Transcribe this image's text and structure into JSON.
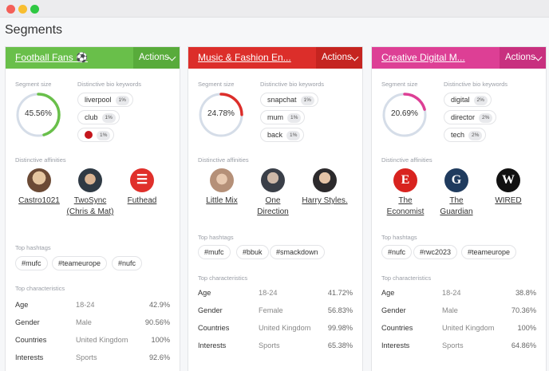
{
  "window": {
    "page_title": "Segments"
  },
  "labels": {
    "segment_size": "Segment size",
    "keywords": "Distinctive bio keywords",
    "affinities": "Distinctive affinities",
    "hashtags": "Top hashtags",
    "characteristics": "Top characteristics"
  },
  "cards": [
    {
      "title": "Football Fans ⚽",
      "actions": "Actions",
      "header_color": "#69bf4a",
      "actions_color": "#58ab3b",
      "ring_color": "#69bf4a",
      "size_pct": 45.56,
      "size_label": "45.56%",
      "keywords": [
        {
          "word": "liverpool",
          "pct": "1%"
        },
        {
          "word": "club",
          "pct": "1%"
        },
        {
          "word": "",
          "pct": "1%",
          "icon": "flag-icon"
        }
      ],
      "affinities": [
        "Castro1021",
        "TwoSync (Chris & Mat)",
        "Futhead"
      ],
      "hashtags": [
        "#mufc",
        "#teameurope",
        "#nufc"
      ],
      "characteristics": [
        {
          "key": "Age",
          "value": "18-24",
          "pct": "42.9%"
        },
        {
          "key": "Gender",
          "value": "Male",
          "pct": "90.56%"
        },
        {
          "key": "Countries",
          "value": "United Kingdom",
          "pct": "100%"
        },
        {
          "key": "Interests",
          "value": "Sports",
          "pct": "92.6%"
        }
      ]
    },
    {
      "title": "Music & Fashion En...",
      "actions": "Actions",
      "header_color": "#dc2e2a",
      "actions_color": "#c52420",
      "ring_color": "#dc2e2a",
      "size_pct": 24.78,
      "size_label": "24.78%",
      "keywords": [
        {
          "word": "snapchat",
          "pct": "1%"
        },
        {
          "word": "mum",
          "pct": "1%"
        },
        {
          "word": "back",
          "pct": "1%"
        }
      ],
      "affinities": [
        "Little Mix",
        "One Direction",
        "Harry Styles."
      ],
      "hashtags": [
        "#mufc",
        "#bbuk",
        "#smackdown"
      ],
      "characteristics": [
        {
          "key": "Age",
          "value": "18-24",
          "pct": "41.72%"
        },
        {
          "key": "Gender",
          "value": "Female",
          "pct": "56.83%"
        },
        {
          "key": "Countries",
          "value": "United Kingdom",
          "pct": "99.98%"
        },
        {
          "key": "Interests",
          "value": "Sports",
          "pct": "65.38%"
        }
      ]
    },
    {
      "title": "Creative Digital M...",
      "actions": "Actions",
      "header_color": "#dd3f95",
      "actions_color": "#c8307f",
      "ring_color": "#dd3f95",
      "size_pct": 20.69,
      "size_label": "20.69%",
      "keywords": [
        {
          "word": "digital",
          "pct": "2%"
        },
        {
          "word": "director",
          "pct": "2%"
        },
        {
          "word": "tech",
          "pct": "2%"
        }
      ],
      "affinities": [
        "The Economist",
        "The Guardian",
        "WIRED"
      ],
      "hashtags": [
        "#nufc",
        "#rwc2023",
        "#teameurope"
      ],
      "characteristics": [
        {
          "key": "Age",
          "value": "18-24",
          "pct": "38.8%"
        },
        {
          "key": "Gender",
          "value": "Male",
          "pct": "70.36%"
        },
        {
          "key": "Countries",
          "value": "United Kingdom",
          "pct": "100%"
        },
        {
          "key": "Interests",
          "value": "Sports",
          "pct": "64.86%"
        }
      ]
    }
  ]
}
